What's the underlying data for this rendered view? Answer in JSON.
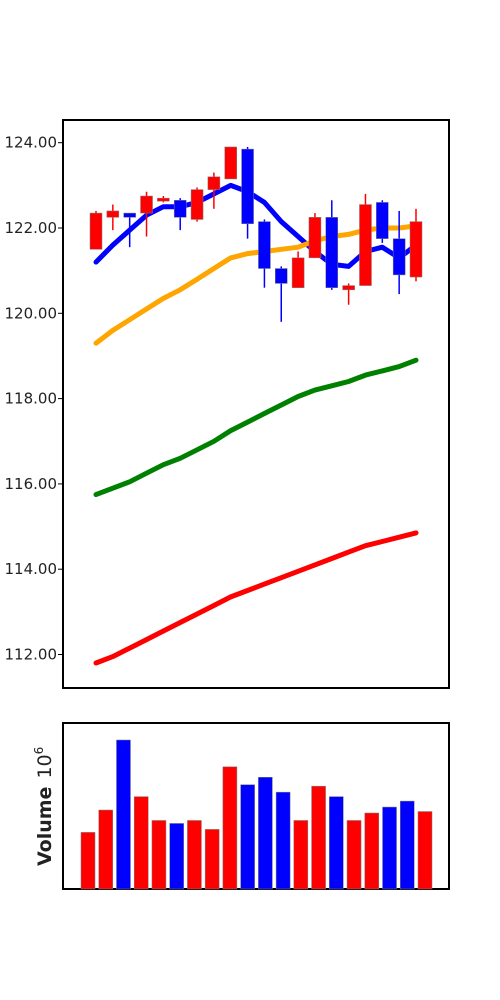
{
  "chart_data": [
    {
      "type": "candlestick",
      "title": "",
      "ylabel": "",
      "ylim": [
        111.2,
        124.5
      ],
      "yticks": [
        "112.00",
        "114.00",
        "116.00",
        "118.00",
        "120.00",
        "122.00",
        "124.00"
      ],
      "grid": false,
      "up_color": "#0000ff",
      "down_color": "#ff0000",
      "candles": [
        {
          "open": 122.35,
          "high": 122.4,
          "low": 121.5,
          "close": 121.5,
          "dir": "down"
        },
        {
          "open": 122.4,
          "high": 122.55,
          "low": 121.95,
          "close": 122.25,
          "dir": "down"
        },
        {
          "open": 122.25,
          "high": 122.35,
          "low": 121.55,
          "close": 122.35,
          "dir": "up"
        },
        {
          "open": 122.75,
          "high": 122.85,
          "low": 121.8,
          "close": 122.35,
          "dir": "down"
        },
        {
          "open": 122.7,
          "high": 122.75,
          "low": 122.6,
          "close": 122.65,
          "dir": "down"
        },
        {
          "open": 122.25,
          "high": 122.7,
          "low": 121.95,
          "close": 122.65,
          "dir": "up"
        },
        {
          "open": 122.9,
          "high": 122.95,
          "low": 122.15,
          "close": 122.2,
          "dir": "down"
        },
        {
          "open": 123.2,
          "high": 123.3,
          "low": 122.45,
          "close": 122.9,
          "dir": "down"
        },
        {
          "open": 123.9,
          "high": 123.9,
          "low": 123.15,
          "close": 123.15,
          "dir": "down"
        },
        {
          "open": 122.1,
          "high": 123.9,
          "low": 121.75,
          "close": 123.85,
          "dir": "up"
        },
        {
          "open": 121.05,
          "high": 122.2,
          "low": 120.6,
          "close": 122.15,
          "dir": "up"
        },
        {
          "open": 120.7,
          "high": 121.1,
          "low": 119.8,
          "close": 121.05,
          "dir": "up"
        },
        {
          "open": 121.3,
          "high": 121.45,
          "low": 120.6,
          "close": 120.6,
          "dir": "down"
        },
        {
          "open": 122.25,
          "high": 122.35,
          "low": 121.3,
          "close": 121.3,
          "dir": "down"
        },
        {
          "open": 120.6,
          "high": 122.65,
          "low": 120.55,
          "close": 122.25,
          "dir": "up"
        },
        {
          "open": 120.65,
          "high": 120.7,
          "low": 120.2,
          "close": 120.55,
          "dir": "down"
        },
        {
          "open": 122.55,
          "high": 122.8,
          "low": 120.65,
          "close": 120.65,
          "dir": "down"
        },
        {
          "open": 121.75,
          "high": 122.65,
          "low": 121.65,
          "close": 122.6,
          "dir": "up"
        },
        {
          "open": 120.9,
          "high": 122.4,
          "low": 120.45,
          "close": 121.75,
          "dir": "up"
        },
        {
          "open": 122.15,
          "high": 122.45,
          "low": 120.75,
          "close": 120.85,
          "dir": "down"
        }
      ],
      "series": [
        {
          "color": "#0000ff",
          "values": [
            121.2,
            121.6,
            121.95,
            122.3,
            122.5,
            122.5,
            122.6,
            122.8,
            123.0,
            122.85,
            122.6,
            122.15,
            121.8,
            121.45,
            121.15,
            121.1,
            121.45,
            121.55,
            121.3,
            121.6
          ]
        },
        {
          "color": "#ffa500",
          "values": [
            119.3,
            119.6,
            119.85,
            120.1,
            120.35,
            120.55,
            120.8,
            121.05,
            121.3,
            121.4,
            121.45,
            121.5,
            121.55,
            121.7,
            121.8,
            121.85,
            121.95,
            122.0,
            122.0,
            122.05
          ]
        },
        {
          "color": "#008000",
          "values": [
            115.75,
            115.9,
            116.05,
            116.25,
            116.45,
            116.6,
            116.8,
            117.0,
            117.25,
            117.45,
            117.65,
            117.85,
            118.05,
            118.2,
            118.3,
            118.4,
            118.55,
            118.65,
            118.75,
            118.9
          ]
        },
        {
          "color": "#ff0000",
          "values": [
            111.8,
            111.95,
            112.15,
            112.35,
            112.55,
            112.75,
            112.95,
            113.15,
            113.35,
            113.5,
            113.65,
            113.8,
            113.95,
            114.1,
            114.25,
            114.4,
            114.55,
            114.65,
            114.75,
            114.85
          ]
        }
      ]
    },
    {
      "type": "bar",
      "ylabel_main": "Volume",
      "ylabel_exponent": "10",
      "ylabel_power": "6",
      "ylim": [
        0,
        1.0
      ],
      "grid": false,
      "values": [
        0.38,
        0.53,
        1.0,
        0.62,
        0.46,
        0.44,
        0.46,
        0.4,
        0.82,
        0.7,
        0.75,
        0.65,
        0.46,
        0.69,
        0.62,
        0.46,
        0.51,
        0.55,
        0.59,
        0.52
      ],
      "colors": [
        "#ff0000",
        "#ff0000",
        "#0000ff",
        "#ff0000",
        "#ff0000",
        "#0000ff",
        "#ff0000",
        "#ff0000",
        "#ff0000",
        "#0000ff",
        "#0000ff",
        "#0000ff",
        "#ff0000",
        "#ff0000",
        "#0000ff",
        "#ff0000",
        "#ff0000",
        "#0000ff",
        "#0000ff",
        "#ff0000"
      ]
    }
  ]
}
